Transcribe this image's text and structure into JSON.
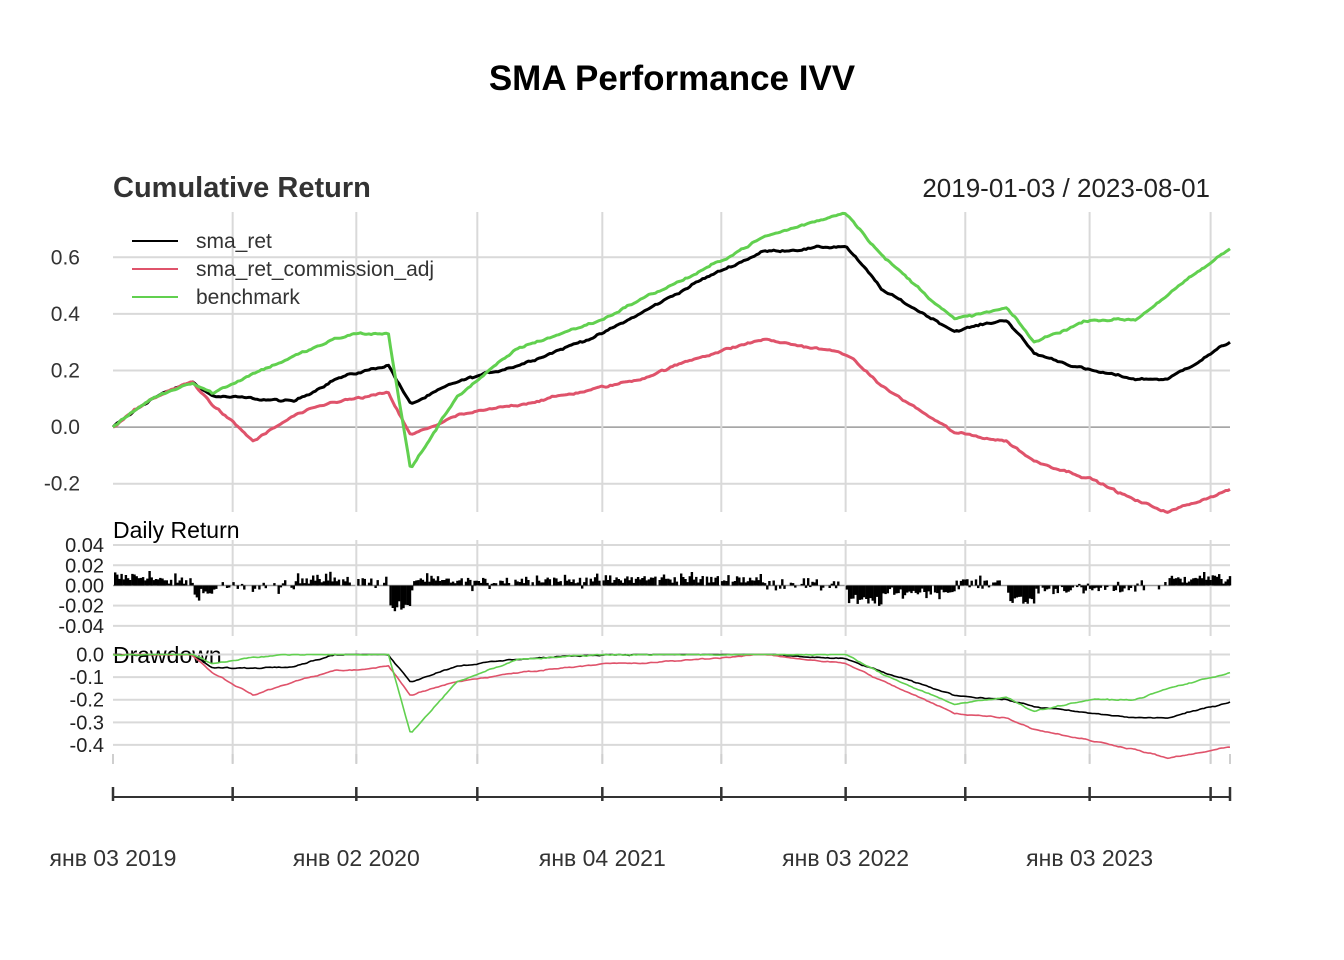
{
  "title": "SMA Performance IVV",
  "chart_data": [
    {
      "type": "line",
      "title": "Cumulative Return",
      "date_range": "2019-01-03 / 2023-08-01",
      "legend_position": "top-left",
      "grid": true,
      "x": [
        "2019-01-03",
        "2019-03-01",
        "2019-05-01",
        "2019-06-01",
        "2019-08-01",
        "2019-10-01",
        "2019-12-01",
        "2020-01-02",
        "2020-02-19",
        "2020-03-23",
        "2020-06-01",
        "2020-09-01",
        "2021-01-04",
        "2021-03-01",
        "2021-06-01",
        "2021-09-01",
        "2022-01-03",
        "2022-03-01",
        "2022-06-15",
        "2022-09-01",
        "2022-10-12",
        "2023-01-03",
        "2023-03-13",
        "2023-05-01",
        "2023-08-01"
      ],
      "ylim": [
        -0.3,
        0.76
      ],
      "yticks": [
        "0.6",
        "0.4",
        "0.2",
        "0.0",
        "-0.2"
      ],
      "series": [
        {
          "name": "sma_ret",
          "color": "#000000",
          "values": [
            0.0,
            0.1,
            0.16,
            0.11,
            0.1,
            0.09,
            0.17,
            0.19,
            0.22,
            0.08,
            0.16,
            0.22,
            0.33,
            0.4,
            0.52,
            0.62,
            0.64,
            0.48,
            0.34,
            0.38,
            0.26,
            0.2,
            0.17,
            0.17,
            0.3
          ]
        },
        {
          "name": "sma_ret_commission_adj",
          "color": "#df536b",
          "values": [
            0.0,
            0.1,
            0.16,
            0.08,
            -0.05,
            0.04,
            0.09,
            0.1,
            0.12,
            -0.03,
            0.04,
            0.08,
            0.14,
            0.17,
            0.25,
            0.31,
            0.26,
            0.14,
            -0.02,
            -0.05,
            -0.12,
            -0.18,
            -0.26,
            -0.3,
            -0.22
          ]
        },
        {
          "name": "benchmark",
          "color": "#61d04f",
          "values": [
            0.0,
            0.1,
            0.16,
            0.12,
            0.19,
            0.25,
            0.31,
            0.33,
            0.33,
            -0.15,
            0.11,
            0.28,
            0.38,
            0.45,
            0.55,
            0.67,
            0.76,
            0.6,
            0.38,
            0.42,
            0.3,
            0.38,
            0.38,
            0.47,
            0.63
          ]
        }
      ]
    },
    {
      "type": "bar",
      "title": "Daily Return",
      "ylim": [
        -0.05,
        0.045
      ],
      "yticks": [
        "0.04",
        "0.02",
        "0.00",
        "-0.02",
        "-0.04"
      ],
      "series": [
        {
          "name": "sma_ret",
          "color": "#000000"
        }
      ]
    },
    {
      "type": "line",
      "title": "Drawdown",
      "ylim": [
        -0.48,
        0.02
      ],
      "yticks": [
        "0.0",
        "-0.1",
        "-0.2",
        "-0.3",
        "-0.4"
      ],
      "series": [
        {
          "name": "sma_ret",
          "color": "#000000",
          "values": [
            0.0,
            0.0,
            0.0,
            -0.06,
            -0.06,
            -0.05,
            0.0,
            0.0,
            0.0,
            -0.12,
            -0.05,
            -0.02,
            0.0,
            0.0,
            0.0,
            0.0,
            -0.02,
            -0.08,
            -0.18,
            -0.2,
            -0.23,
            -0.26,
            -0.28,
            -0.28,
            -0.21
          ]
        },
        {
          "name": "sma_ret_commission_adj",
          "color": "#df536b",
          "values": [
            0.0,
            0.0,
            0.0,
            -0.08,
            -0.18,
            -0.12,
            -0.07,
            -0.07,
            -0.05,
            -0.18,
            -0.12,
            -0.08,
            -0.04,
            -0.04,
            -0.02,
            0.0,
            -0.04,
            -0.12,
            -0.26,
            -0.28,
            -0.33,
            -0.38,
            -0.42,
            -0.46,
            -0.41
          ]
        },
        {
          "name": "benchmark",
          "color": "#61d04f",
          "values": [
            0.0,
            0.0,
            0.0,
            -0.04,
            -0.01,
            0.0,
            0.0,
            0.0,
            0.0,
            -0.35,
            -0.12,
            -0.02,
            0.0,
            0.0,
            0.0,
            0.0,
            0.0,
            -0.09,
            -0.22,
            -0.19,
            -0.25,
            -0.2,
            -0.2,
            -0.15,
            -0.08
          ]
        }
      ]
    }
  ],
  "x_axis": {
    "labels": [
      "янв 03 2019",
      "янв 02 2020",
      "янв 04 2021",
      "янв 03 2022",
      "янв 03 2023"
    ]
  }
}
